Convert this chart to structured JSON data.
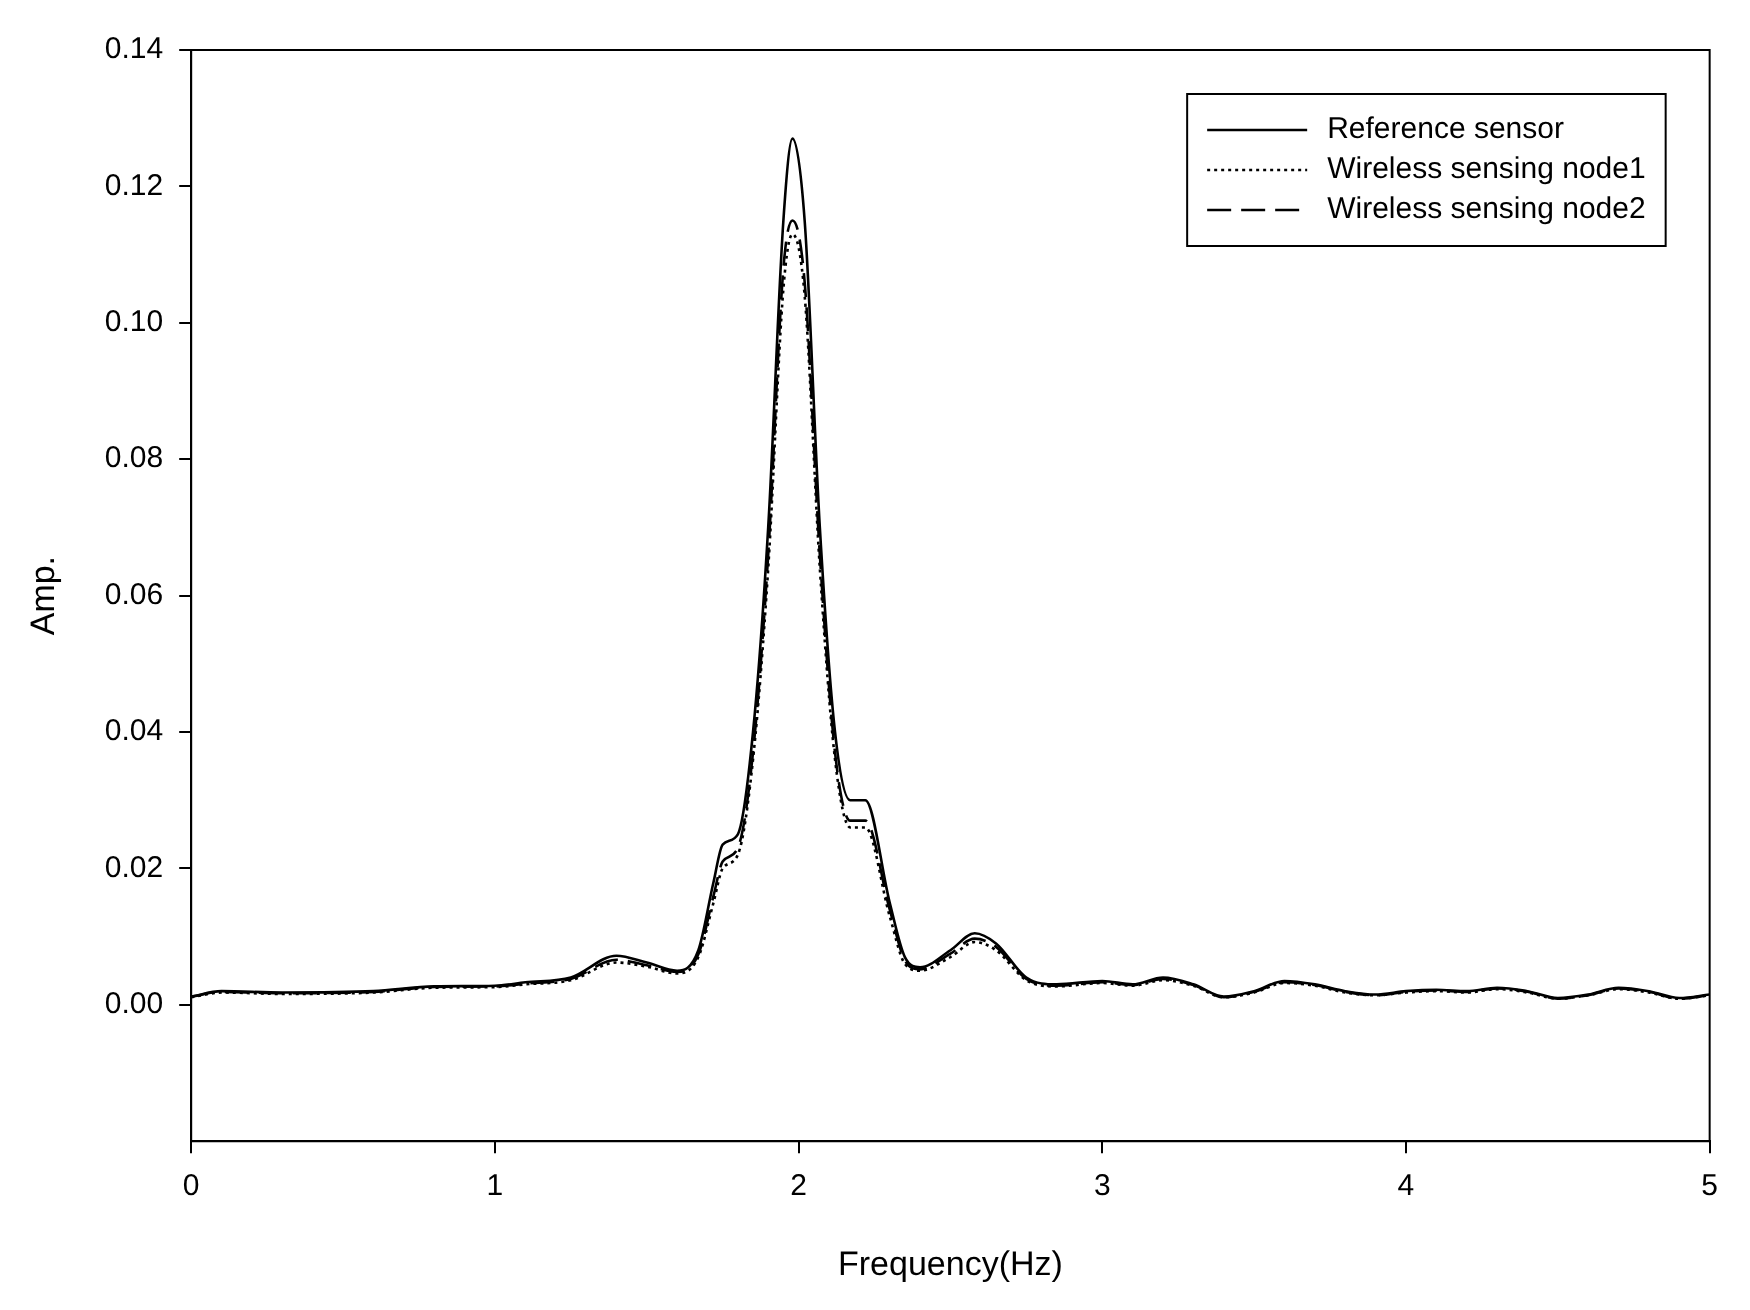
{
  "chart_data": {
    "type": "line",
    "xlabel": "Frequency(Hz)",
    "ylabel": "Amp.",
    "legend": "top right",
    "grid": false,
    "marker": "none",
    "xlim": [
      0,
      5
    ],
    "xticks": [
      0,
      1,
      2,
      3,
      4,
      5
    ],
    "ylim": [
      -0.02,
      0.14
    ],
    "yticks": [
      {
        "value": 0,
        "label": "0.00"
      },
      {
        "value": 0.02,
        "label": "0.02"
      },
      {
        "value": 0.04,
        "label": "0.04"
      },
      {
        "value": 0.06,
        "label": "0.06"
      },
      {
        "value": 0.08,
        "label": "0.08"
      },
      {
        "value": 0.1,
        "label": "0.10"
      },
      {
        "value": 0.12,
        "label": "0.12"
      },
      {
        "value": 0.14,
        "label": "0.14"
      }
    ],
    "x": [
      0,
      0.1,
      0.3,
      0.6,
      0.8,
      1.0,
      1.1,
      1.25,
      1.4,
      1.5,
      1.6,
      1.67,
      1.72,
      1.75,
      1.8,
      1.85,
      1.9,
      1.95,
      1.98,
      2.02,
      2.07,
      2.12,
      2.17,
      2.22,
      2.3,
      2.35,
      2.4,
      2.5,
      2.58,
      2.65,
      2.75,
      2.85,
      3.0,
      3.1,
      3.2,
      3.3,
      3.4,
      3.5,
      3.6,
      3.7,
      3.8,
      3.9,
      4.0,
      4.1,
      4.2,
      4.3,
      4.4,
      4.5,
      4.6,
      4.7,
      4.8,
      4.9,
      5.0
    ],
    "series": [
      {
        "name": "Reference sensor",
        "color": "#000000",
        "line_style": "solid",
        "values": [
          0.0012,
          0.002,
          0.0018,
          0.002,
          0.0027,
          0.0028,
          0.0033,
          0.004,
          0.0072,
          0.0062,
          0.005,
          0.008,
          0.018,
          0.0235,
          0.025,
          0.04,
          0.07,
          0.115,
          0.127,
          0.115,
          0.07,
          0.04,
          0.03,
          0.03,
          0.015,
          0.007,
          0.0055,
          0.008,
          0.0105,
          0.009,
          0.004,
          0.003,
          0.0035,
          0.003,
          0.004,
          0.003,
          0.0012,
          0.002,
          0.0035,
          0.003,
          0.002,
          0.0015,
          0.002,
          0.0022,
          0.002,
          0.0025,
          0.002,
          0.001,
          0.0015,
          0.0025,
          0.002,
          0.001,
          0.0015
        ]
      },
      {
        "name": "Wireless sensing node1",
        "color": "#000000",
        "line_style": "dotted",
        "values": [
          0.0011,
          0.0018,
          0.0016,
          0.0018,
          0.0025,
          0.0026,
          0.003,
          0.0036,
          0.0062,
          0.0056,
          0.0046,
          0.007,
          0.015,
          0.02,
          0.022,
          0.036,
          0.064,
          0.105,
          0.113,
          0.104,
          0.064,
          0.036,
          0.026,
          0.026,
          0.013,
          0.006,
          0.005,
          0.007,
          0.0092,
          0.008,
          0.0036,
          0.0027,
          0.0032,
          0.0028,
          0.0036,
          0.0028,
          0.0011,
          0.0018,
          0.0032,
          0.0028,
          0.0018,
          0.0014,
          0.0018,
          0.002,
          0.0018,
          0.0023,
          0.0018,
          0.0009,
          0.0014,
          0.0023,
          0.0018,
          0.0009,
          0.0014
        ]
      },
      {
        "name": "Wireless sensing node2",
        "color": "#000000",
        "line_style": "dashed",
        "values": [
          0.0012,
          0.0019,
          0.0017,
          0.0019,
          0.0026,
          0.0027,
          0.0031,
          0.0038,
          0.0066,
          0.0058,
          0.0048,
          0.0074,
          0.016,
          0.021,
          0.023,
          0.037,
          0.066,
          0.108,
          0.115,
          0.106,
          0.066,
          0.037,
          0.027,
          0.027,
          0.014,
          0.0065,
          0.0052,
          0.0075,
          0.0097,
          0.0085,
          0.0038,
          0.0028,
          0.0033,
          0.0029,
          0.0038,
          0.0029,
          0.0011,
          0.0019,
          0.0033,
          0.0029,
          0.0019,
          0.0014,
          0.0019,
          0.0021,
          0.0019,
          0.0024,
          0.0019,
          0.0009,
          0.0014,
          0.0024,
          0.0019,
          0.0009,
          0.0014
        ]
      }
    ]
  }
}
